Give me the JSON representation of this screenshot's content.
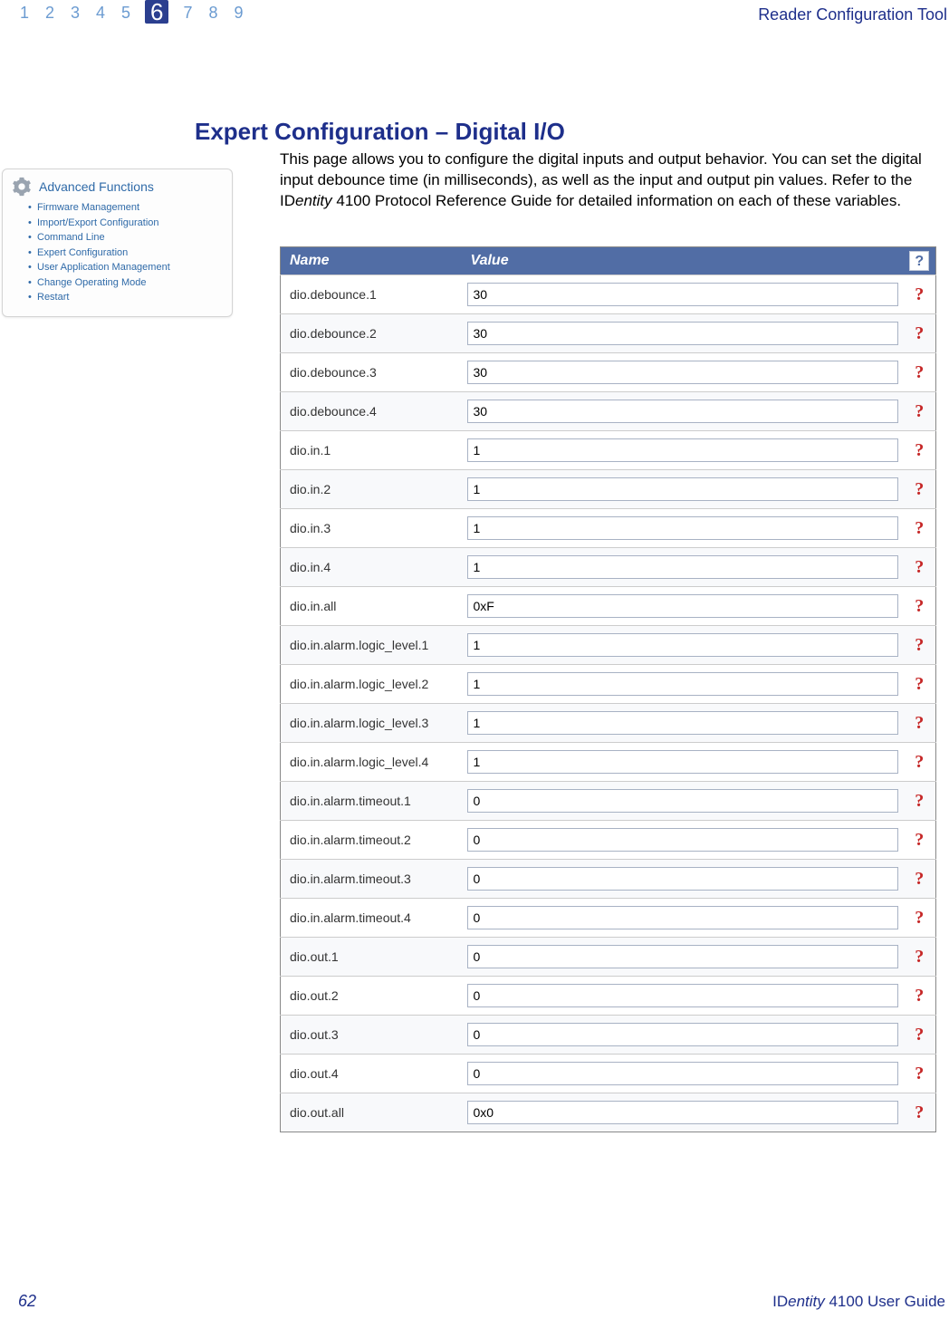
{
  "header": {
    "chapters": [
      "1",
      "2",
      "3",
      "4",
      "5",
      "6",
      "7",
      "8",
      "9"
    ],
    "active_index": 5,
    "tool_title": "Reader Configuration Tool"
  },
  "section": {
    "title": "Expert Configuration – Digital I/O",
    "paragraph_before_ref": "This page allows you to configure the digital inputs and output behavior. You can set the digital input debounce time (in milliseconds), as well as the input and output pin values. Refer to the ",
    "reference_prefix": "ID",
    "reference_italic": "entity",
    "reference_suffix": " 4100 Protocol Reference Guide",
    "paragraph_after_ref": " for detailed information on each of these variables."
  },
  "sidebar": {
    "title": "Advanced Functions",
    "items": [
      "Firmware Management",
      "Import/Export Configuration",
      "Command Line",
      "Expert Configuration",
      "User Application Management",
      "Change Operating Mode",
      "Restart"
    ]
  },
  "table": {
    "header_name": "Name",
    "header_value": "Value",
    "header_help": "?",
    "rows": [
      {
        "name": "dio.debounce.1",
        "value": "30"
      },
      {
        "name": "dio.debounce.2",
        "value": "30"
      },
      {
        "name": "dio.debounce.3",
        "value": "30"
      },
      {
        "name": "dio.debounce.4",
        "value": "30"
      },
      {
        "name": "dio.in.1",
        "value": "1"
      },
      {
        "name": "dio.in.2",
        "value": "1"
      },
      {
        "name": "dio.in.3",
        "value": "1"
      },
      {
        "name": "dio.in.4",
        "value": "1"
      },
      {
        "name": "dio.in.all",
        "value": "0xF"
      },
      {
        "name": "dio.in.alarm.logic_level.1",
        "value": "1"
      },
      {
        "name": "dio.in.alarm.logic_level.2",
        "value": "1"
      },
      {
        "name": "dio.in.alarm.logic_level.3",
        "value": "1"
      },
      {
        "name": "dio.in.alarm.logic_level.4",
        "value": "1"
      },
      {
        "name": "dio.in.alarm.timeout.1",
        "value": "0"
      },
      {
        "name": "dio.in.alarm.timeout.2",
        "value": "0"
      },
      {
        "name": "dio.in.alarm.timeout.3",
        "value": "0"
      },
      {
        "name": "dio.in.alarm.timeout.4",
        "value": "0"
      },
      {
        "name": "dio.out.1",
        "value": "0"
      },
      {
        "name": "dio.out.2",
        "value": "0"
      },
      {
        "name": "dio.out.3",
        "value": "0"
      },
      {
        "name": "dio.out.4",
        "value": "0"
      },
      {
        "name": "dio.out.all",
        "value": "0x0"
      }
    ],
    "help_glyph": "?"
  },
  "footer": {
    "page_number": "62",
    "guide_prefix": "ID",
    "guide_italic": "entity",
    "guide_suffix": " 4100 User Guide"
  },
  "colors": {
    "brand_blue": "#1e2f8b",
    "nav_inactive": "#6b9bd1",
    "table_header_bg": "#516da5",
    "help_red": "#c62828",
    "sidebar_link": "#2f6aa8"
  }
}
